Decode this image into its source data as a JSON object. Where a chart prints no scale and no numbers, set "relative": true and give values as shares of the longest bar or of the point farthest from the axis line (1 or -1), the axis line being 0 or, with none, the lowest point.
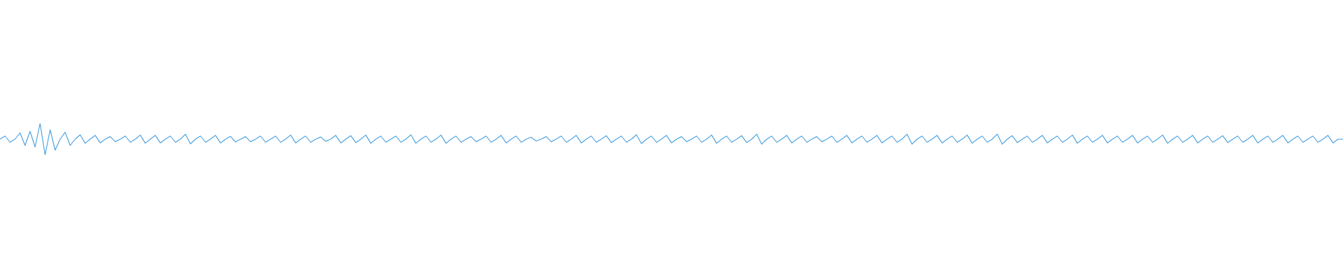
{
  "chart_data": {
    "type": "line",
    "relative": true,
    "color": "#4fa3e0",
    "categories": [
      null,
      null,
      null,
      null,
      null,
      null,
      null,
      null,
      null,
      null,
      null,
      null,
      null,
      null,
      null,
      null,
      null,
      null,
      null,
      null,
      null,
      null,
      null,
      null,
      null,
      null,
      null,
      null,
      null,
      null,
      null,
      null,
      null,
      null,
      null,
      null,
      null,
      null,
      null,
      null,
      null,
      null,
      null,
      null,
      null,
      null,
      null,
      null,
      null,
      null,
      null,
      null,
      null,
      null,
      null,
      null,
      null,
      null,
      null,
      null,
      null,
      null,
      null,
      null,
      null,
      null,
      null,
      null,
      null,
      null,
      null,
      null,
      null,
      null,
      null,
      null,
      null,
      null,
      null,
      null,
      null,
      null,
      null,
      null,
      null,
      null,
      null,
      null,
      null,
      null,
      null,
      null,
      null,
      null,
      null,
      null,
      null,
      null,
      null,
      null,
      null,
      null,
      null,
      null,
      null,
      null,
      null,
      null,
      null,
      null,
      null,
      null,
      null,
      null,
      null,
      null,
      null,
      null,
      null,
      null,
      null,
      null,
      null,
      null,
      null,
      null,
      null,
      null,
      null,
      null,
      null,
      null,
      null,
      null,
      null,
      null,
      null,
      null,
      null,
      null,
      null,
      null,
      null,
      null,
      null,
      null,
      null,
      null,
      null,
      null,
      null,
      null,
      null,
      null,
      null,
      null,
      null,
      null,
      null,
      null,
      null,
      null,
      null,
      null,
      null,
      null,
      null,
      null,
      null,
      null,
      null,
      null,
      null,
      null,
      null,
      null,
      null,
      null,
      null,
      null,
      null,
      null,
      null,
      null,
      null,
      null,
      null,
      null,
      null,
      null,
      null,
      null,
      null,
      null,
      null,
      null,
      null,
      null,
      null,
      null,
      null,
      null,
      null,
      null,
      null,
      null,
      null,
      null,
      null,
      null,
      null,
      null,
      null,
      null,
      null,
      null,
      null,
      null,
      null,
      null,
      null,
      null,
      null,
      null,
      null,
      null,
      null,
      null,
      null,
      null,
      null,
      null,
      null,
      null,
      null,
      null,
      null,
      null,
      null,
      null,
      null,
      null,
      null,
      null,
      null,
      null,
      null,
      null,
      null,
      null,
      null,
      null,
      null,
      null,
      null,
      null,
      null,
      null,
      null,
      null,
      null,
      null,
      null,
      null,
      null,
      null,
      null,
      null,
      null
    ],
    "values": [
      0.5,
      0.6,
      0.4,
      0.5,
      0.7,
      0.3,
      0.75,
      0.25,
      1.0,
      0.0,
      0.8,
      0.15,
      0.5,
      0.72,
      0.3,
      0.5,
      0.64,
      0.37,
      0.5,
      0.62,
      0.38,
      0.5,
      0.58,
      0.42,
      0.5,
      0.6,
      0.4,
      0.5,
      0.63,
      0.37,
      0.5,
      0.62,
      0.38,
      0.5,
      0.6,
      0.4,
      0.5,
      0.66,
      0.35,
      0.5,
      0.6,
      0.4,
      0.5,
      0.62,
      0.38,
      0.5,
      0.59,
      0.41,
      0.5,
      0.58,
      0.42,
      0.5,
      0.6,
      0.4,
      0.5,
      0.6,
      0.4,
      0.5,
      0.63,
      0.38,
      0.5,
      0.6,
      0.4,
      0.5,
      0.57,
      0.43,
      0.5,
      0.62,
      0.38,
      0.5,
      0.61,
      0.39,
      0.5,
      0.63,
      0.37,
      0.5,
      0.6,
      0.4,
      0.5,
      0.6,
      0.4,
      0.5,
      0.64,
      0.37,
      0.5,
      0.6,
      0.4,
      0.5,
      0.63,
      0.37,
      0.5,
      0.6,
      0.4,
      0.5,
      0.58,
      0.42,
      0.5,
      0.6,
      0.4,
      0.5,
      0.62,
      0.38,
      0.5,
      0.6,
      0.4,
      0.5,
      0.56,
      0.44,
      0.5,
      0.58,
      0.42,
      0.5,
      0.6,
      0.4,
      0.5,
      0.62,
      0.38,
      0.5,
      0.6,
      0.4,
      0.5,
      0.61,
      0.39,
      0.5,
      0.6,
      0.4,
      0.5,
      0.64,
      0.36,
      0.5,
      0.6,
      0.4,
      0.5,
      0.62,
      0.38,
      0.5,
      0.58,
      0.42,
      0.5,
      0.6,
      0.4,
      0.5,
      0.63,
      0.37,
      0.5,
      0.6,
      0.4,
      0.5,
      0.61,
      0.39,
      0.5,
      0.66,
      0.34,
      0.5,
      0.6,
      0.4,
      0.5,
      0.62,
      0.38,
      0.5,
      0.6,
      0.4,
      0.5,
      0.58,
      0.42,
      0.5,
      0.6,
      0.4,
      0.5,
      0.62,
      0.38,
      0.5,
      0.6,
      0.4,
      0.5,
      0.62,
      0.38,
      0.5,
      0.6,
      0.4,
      0.5,
      0.66,
      0.34,
      0.5,
      0.6,
      0.4,
      0.5,
      0.62,
      0.38,
      0.5,
      0.6,
      0.4,
      0.5,
      0.63,
      0.37,
      0.5,
      0.6,
      0.4,
      0.5,
      0.66,
      0.34,
      0.5,
      0.61,
      0.39,
      0.5,
      0.6,
      0.4,
      0.5,
      0.62,
      0.38,
      0.5,
      0.6,
      0.4,
      0.5,
      0.63,
      0.37,
      0.5,
      0.6,
      0.4,
      0.5,
      0.62,
      0.38,
      0.5,
      0.6,
      0.4,
      0.5,
      0.62,
      0.38,
      0.5,
      0.6,
      0.4,
      0.5,
      0.63,
      0.37,
      0.5,
      0.6,
      0.4,
      0.5,
      0.62,
      0.38,
      0.5,
      0.6,
      0.4,
      0.5,
      0.61,
      0.39,
      0.5,
      0.6,
      0.4,
      0.5,
      0.62,
      0.38,
      0.5,
      0.6,
      0.4,
      0.5,
      0.62,
      0.38,
      0.5,
      0.6,
      0.4,
      0.5,
      0.6,
      0.4,
      0.5,
      0.62,
      0.38,
      0.5,
      0.5
    ]
  }
}
